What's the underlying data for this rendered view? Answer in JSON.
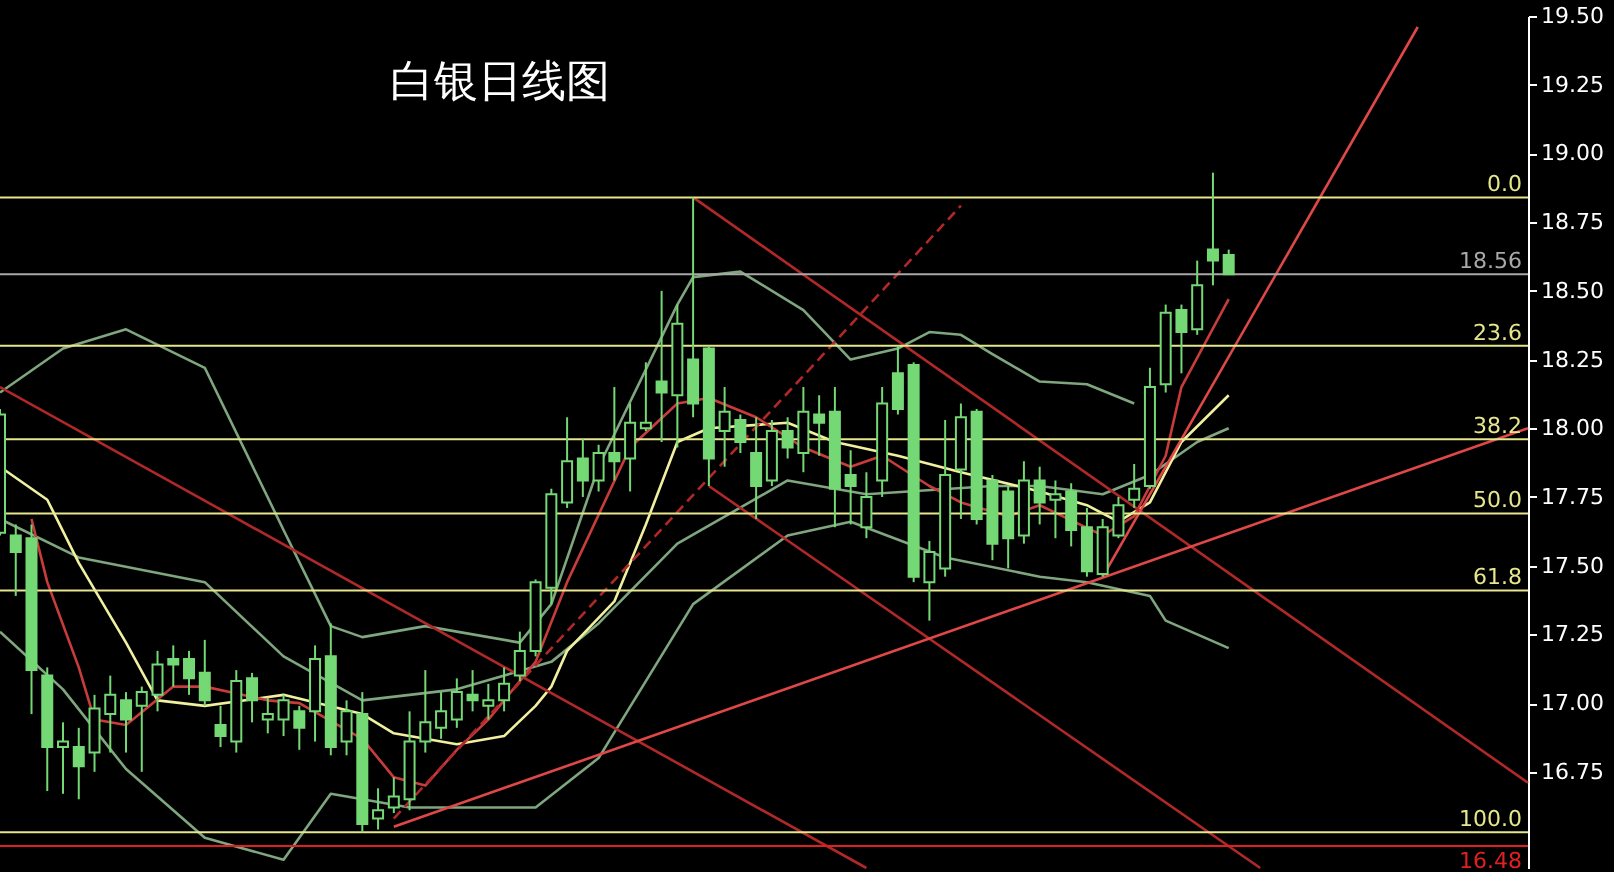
{
  "chart_data": {
    "type": "candlestick",
    "title": "白银日线图",
    "categories": [
      null,
      null,
      null,
      null,
      null,
      null,
      null,
      null,
      null,
      null,
      null,
      null,
      null,
      null,
      null,
      null,
      null,
      null,
      null,
      null,
      null,
      null,
      null,
      null,
      null,
      null,
      null,
      null,
      null,
      null,
      null,
      null,
      null,
      null,
      null,
      null,
      null,
      null,
      null,
      null,
      null,
      null,
      null,
      null,
      null,
      null,
      null,
      null,
      null,
      null,
      null,
      null,
      null,
      null,
      null,
      null,
      null,
      null,
      null,
      null,
      null,
      null,
      null,
      null,
      null,
      null,
      null,
      null,
      null,
      null,
      null,
      null,
      null,
      null,
      null,
      null,
      null,
      null,
      null,
      null,
      null,
      null,
      null,
      null,
      null,
      null,
      null,
      null,
      null,
      null,
      null,
      null,
      null,
      null,
      null,
      null,
      null,
      null
    ],
    "tick_labels": "y",
    "color": "#74d874",
    "ohlc": [
      [
        17.62,
        18.07,
        17.61,
        18.05
      ],
      [
        17.61,
        17.65,
        17.39,
        17.55
      ],
      [
        17.6,
        17.65,
        16.96,
        17.12
      ],
      [
        17.1,
        17.13,
        16.68,
        16.84
      ],
      [
        16.84,
        16.93,
        16.67,
        16.86
      ],
      [
        16.84,
        16.91,
        16.65,
        16.77
      ],
      [
        16.82,
        17.03,
        16.75,
        16.98
      ],
      [
        16.96,
        17.1,
        16.82,
        17.03
      ],
      [
        17.01,
        17.04,
        16.82,
        16.94
      ],
      [
        16.99,
        17.06,
        16.75,
        17.04
      ],
      [
        17.03,
        17.19,
        16.97,
        17.14
      ],
      [
        17.16,
        17.21,
        17.06,
        17.14
      ],
      [
        17.16,
        17.19,
        17.03,
        17.09
      ],
      [
        17.11,
        17.23,
        16.99,
        17.01
      ],
      [
        16.92,
        16.99,
        16.84,
        16.88
      ],
      [
        16.86,
        17.12,
        16.82,
        17.08
      ],
      [
        17.09,
        17.11,
        16.93,
        17.01
      ],
      [
        16.94,
        17.02,
        16.89,
        16.96
      ],
      [
        16.94,
        17.03,
        16.88,
        17.01
      ],
      [
        16.97,
        16.99,
        16.83,
        16.91
      ],
      [
        16.97,
        17.21,
        16.86,
        17.16
      ],
      [
        17.17,
        17.29,
        16.81,
        16.84
      ],
      [
        16.86,
        17.01,
        16.81,
        16.97
      ],
      [
        16.96,
        17.04,
        16.53,
        16.56
      ],
      [
        16.58,
        16.69,
        16.54,
        16.61
      ],
      [
        16.62,
        16.73,
        16.6,
        16.66
      ],
      [
        16.65,
        16.97,
        16.61,
        16.86
      ],
      [
        16.86,
        17.12,
        16.82,
        16.93
      ],
      [
        16.91,
        17.04,
        16.87,
        16.97
      ],
      [
        16.94,
        17.09,
        16.91,
        17.04
      ],
      [
        17.03,
        17.12,
        16.97,
        17.01
      ],
      [
        16.99,
        17.07,
        16.94,
        17.01
      ],
      [
        17.01,
        17.13,
        16.97,
        17.07
      ],
      [
        17.1,
        17.26,
        17.08,
        17.19
      ],
      [
        17.19,
        17.45,
        17.17,
        17.44
      ],
      [
        17.42,
        17.78,
        17.36,
        17.76
      ],
      [
        17.73,
        18.04,
        17.71,
        17.88
      ],
      [
        17.89,
        17.96,
        17.75,
        17.81
      ],
      [
        17.81,
        17.94,
        17.77,
        17.91
      ],
      [
        17.91,
        18.15,
        17.81,
        17.88
      ],
      [
        17.89,
        18.09,
        17.77,
        18.02
      ],
      [
        18.0,
        18.24,
        17.99,
        18.02
      ],
      [
        18.17,
        18.5,
        17.95,
        18.13
      ],
      [
        18.12,
        18.45,
        17.93,
        18.38
      ],
      [
        18.25,
        18.84,
        18.04,
        18.09
      ],
      [
        18.29,
        18.3,
        17.79,
        17.89
      ],
      [
        17.99,
        18.15,
        17.86,
        18.06
      ],
      [
        18.03,
        18.05,
        17.91,
        17.95
      ],
      [
        17.91,
        18.04,
        17.67,
        17.79
      ],
      [
        17.81,
        18.03,
        17.79,
        17.99
      ],
      [
        17.99,
        18.04,
        17.89,
        17.93
      ],
      [
        17.91,
        18.15,
        17.84,
        18.06
      ],
      [
        18.05,
        18.12,
        17.9,
        18.02
      ],
      [
        18.06,
        18.15,
        17.64,
        17.78
      ],
      [
        17.83,
        17.92,
        17.65,
        17.79
      ],
      [
        17.64,
        17.84,
        17.6,
        17.75
      ],
      [
        17.81,
        18.15,
        17.75,
        18.09
      ],
      [
        18.2,
        18.3,
        18.05,
        18.07
      ],
      [
        18.23,
        18.24,
        17.44,
        17.46
      ],
      [
        17.44,
        17.59,
        17.3,
        17.55
      ],
      [
        17.49,
        18.03,
        17.46,
        17.83
      ],
      [
        17.85,
        18.09,
        17.67,
        18.04
      ],
      [
        18.06,
        18.07,
        17.65,
        17.67
      ],
      [
        17.81,
        17.83,
        17.52,
        17.58
      ],
      [
        17.77,
        17.79,
        17.49,
        17.6
      ],
      [
        17.61,
        17.88,
        17.58,
        17.81
      ],
      [
        17.81,
        17.86,
        17.65,
        17.73
      ],
      [
        17.74,
        17.81,
        17.6,
        17.76
      ],
      [
        17.77,
        17.8,
        17.57,
        17.63
      ],
      [
        17.64,
        17.71,
        17.46,
        17.48
      ],
      [
        17.47,
        17.67,
        17.46,
        17.64
      ],
      [
        17.61,
        17.75,
        17.6,
        17.72
      ],
      [
        17.74,
        17.87,
        17.71,
        17.78
      ],
      [
        17.79,
        18.22,
        17.78,
        18.15
      ],
      [
        18.16,
        18.45,
        18.13,
        18.42
      ],
      [
        18.43,
        18.45,
        18.2,
        18.35
      ],
      [
        18.36,
        18.61,
        18.34,
        18.52
      ],
      [
        18.65,
        18.93,
        18.52,
        18.61
      ],
      [
        18.63,
        18.65,
        18.56,
        18.56
      ],
      null,
      null,
      null,
      null,
      null,
      null,
      null,
      null,
      null,
      null,
      null,
      null,
      null,
      null,
      null,
      null,
      null,
      null,
      null
    ],
    "series": [
      {
        "type": "line",
        "color": "#7fa67f",
        "values": [
          18.13,
          null,
          null,
          null,
          18.29,
          null,
          null,
          null,
          18.36,
          null,
          null,
          null,
          null,
          18.22,
          null,
          null,
          null,
          null,
          17.63,
          null,
          null,
          17.28,
          null,
          17.24,
          null,
          null,
          null,
          17.28,
          null,
          null,
          null,
          null,
          null,
          17.22,
          null,
          17.36,
          null,
          null,
          17.86,
          null,
          null,
          null,
          null,
          18.45,
          18.55,
          null,
          null,
          18.57,
          null,
          null,
          null,
          18.43,
          null,
          null,
          18.25,
          null,
          null,
          18.29,
          null,
          18.35,
          null,
          18.34,
          null,
          18.27,
          null,
          null,
          18.17,
          null,
          null,
          18.16,
          null,
          null,
          18.09,
          null,
          null,
          null,
          null,
          null,
          null,
          null,
          null,
          null,
          null,
          null,
          null,
          null,
          null,
          null,
          null,
          null,
          null,
          null,
          null,
          null,
          null,
          null,
          null,
          null
        ]
      },
      {
        "type": "line",
        "color": "#7fa67f",
        "values": [
          17.67,
          null,
          null,
          null,
          null,
          17.53,
          null,
          null,
          null,
          null,
          null,
          null,
          null,
          17.44,
          null,
          null,
          null,
          null,
          17.17,
          null,
          null,
          null,
          null,
          17.01,
          null,
          null,
          null,
          null,
          null,
          17.05,
          null,
          null,
          null,
          null,
          null,
          17.15,
          null,
          null,
          17.29,
          null,
          null,
          null,
          null,
          17.58,
          null,
          null,
          null,
          null,
          null,
          null,
          17.81,
          null,
          null,
          null,
          null,
          17.76,
          null,
          null,
          null,
          null,
          null,
          null,
          null,
          17.79,
          null,
          null,
          17.79,
          null,
          null,
          null,
          17.76,
          null,
          null,
          17.83,
          null,
          null,
          17.95,
          null,
          18.0,
          null,
          null,
          null,
          null,
          null,
          null,
          null,
          null,
          null,
          null,
          null,
          null,
          null,
          null,
          null,
          null,
          null,
          null,
          null
        ]
      },
      {
        "type": "line",
        "color": "#7fa67f",
        "values": [
          17.26,
          null,
          null,
          null,
          17.05,
          null,
          null,
          null,
          16.76,
          null,
          null,
          null,
          null,
          16.51,
          null,
          null,
          null,
          null,
          16.43,
          null,
          null,
          16.67,
          null,
          null,
          null,
          null,
          16.62,
          null,
          null,
          null,
          null,
          null,
          null,
          null,
          16.62,
          null,
          null,
          null,
          16.8,
          null,
          null,
          null,
          null,
          null,
          17.36,
          null,
          null,
          null,
          null,
          null,
          17.61,
          null,
          null,
          null,
          17.66,
          null,
          null,
          null,
          null,
          null,
          17.53,
          null,
          null,
          null,
          null,
          null,
          17.46,
          null,
          null,
          17.44,
          null,
          null,
          null,
          17.39,
          17.3,
          null,
          null,
          null,
          17.2,
          null,
          null,
          null,
          null,
          null,
          null,
          null,
          null,
          null,
          null,
          null,
          null,
          null,
          null,
          null,
          null,
          null,
          null,
          null
        ]
      },
      {
        "type": "line",
        "color": "#f0f0a0",
        "values": [
          17.86,
          null,
          null,
          17.74,
          null,
          17.51,
          null,
          null,
          17.22,
          null,
          17.01,
          null,
          null,
          16.99,
          null,
          null,
          null,
          null,
          17.03,
          null,
          null,
          null,
          null,
          16.96,
          null,
          16.89,
          null,
          null,
          null,
          16.85,
          null,
          null,
          16.88,
          null,
          16.99,
          17.06,
          17.19,
          null,
          null,
          17.37,
          null,
          17.65,
          null,
          17.95,
          null,
          18.0,
          null,
          null,
          null,
          null,
          18.02,
          null,
          null,
          17.95,
          null,
          null,
          null,
          17.9,
          null,
          null,
          null,
          17.84,
          null,
          null,
          null,
          null,
          17.77,
          null,
          null,
          17.72,
          null,
          17.66,
          null,
          17.73,
          null,
          17.95,
          null,
          null,
          18.12,
          null,
          null,
          null,
          null,
          null,
          null,
          null,
          null,
          null,
          null,
          null,
          null,
          null,
          null,
          null,
          null,
          null,
          null,
          null
        ]
      },
      {
        "type": "line",
        "color": "#c83c3c",
        "values": [
          null,
          null,
          17.67,
          17.44,
          null,
          17.13,
          16.94,
          null,
          16.92,
          null,
          null,
          17.06,
          null,
          17.06,
          null,
          null,
          null,
          17.01,
          null,
          17.0,
          null,
          null,
          null,
          16.87,
          null,
          16.73,
          null,
          16.7,
          null,
          16.83,
          null,
          16.94,
          null,
          null,
          17.15,
          null,
          17.44,
          null,
          null,
          null,
          17.93,
          null,
          null,
          18.09,
          null,
          18.11,
          null,
          null,
          18.04,
          null,
          null,
          17.93,
          null,
          null,
          17.86,
          null,
          17.9,
          null,
          null,
          17.79,
          null,
          17.73,
          null,
          null,
          17.68,
          null,
          17.72,
          null,
          null,
          null,
          17.61,
          null,
          17.68,
          null,
          17.9,
          18.15,
          null,
          null,
          18.47,
          null,
          null,
          null,
          null,
          null,
          null,
          null,
          null,
          null,
          null,
          null,
          null,
          null,
          null,
          null,
          null,
          null,
          null,
          null
        ]
      },
      {
        "type": "line",
        "color": "#b02828",
        "values": [
          18.15,
          null,
          null,
          null,
          null,
          null,
          null,
          null,
          null,
          null,
          null,
          null,
          null,
          null,
          null,
          null,
          null,
          null,
          null,
          null,
          null,
          null,
          null,
          null,
          null,
          null,
          null,
          null,
          null,
          null,
          null,
          null,
          null,
          null,
          null,
          null,
          null,
          null,
          null,
          null,
          null,
          null,
          null,
          null,
          null,
          null,
          null,
          null,
          null,
          null,
          null,
          null,
          null,
          null,
          null,
          16.4,
          null,
          null,
          null,
          null,
          null,
          null,
          null,
          null,
          null,
          null,
          null,
          null,
          null,
          null,
          null,
          null,
          null,
          null,
          null,
          null,
          null,
          null,
          null,
          null,
          null,
          null,
          null,
          null,
          null,
          null,
          null,
          null,
          null,
          null,
          null,
          null,
          null,
          null,
          null,
          null,
          null,
          null
        ]
      },
      {
        "type": "line",
        "color": "#b02828",
        "values": [
          null,
          null,
          null,
          null,
          null,
          null,
          null,
          null,
          null,
          null,
          null,
          null,
          null,
          null,
          null,
          null,
          null,
          null,
          null,
          null,
          null,
          null,
          null,
          null,
          null,
          null,
          null,
          null,
          null,
          null,
          null,
          null,
          null,
          null,
          null,
          null,
          null,
          null,
          null,
          null,
          null,
          null,
          null,
          null,
          18.84,
          null,
          null,
          null,
          null,
          null,
          null,
          null,
          null,
          null,
          null,
          null,
          null,
          null,
          null,
          null,
          null,
          null,
          null,
          null,
          null,
          null,
          null,
          null,
          null,
          null,
          null,
          null,
          null,
          null,
          null,
          null,
          null,
          null,
          null,
          null,
          null,
          null,
          null,
          null,
          null,
          null,
          null,
          null,
          null,
          null,
          null,
          null,
          null,
          null,
          null,
          null,
          null,
          16.71
        ]
      },
      {
        "type": "line",
        "color": "#b02828",
        "values": [
          null,
          null,
          null,
          null,
          null,
          null,
          null,
          null,
          null,
          null,
          null,
          null,
          null,
          null,
          null,
          null,
          null,
          null,
          null,
          null,
          null,
          null,
          null,
          null,
          null,
          null,
          null,
          null,
          null,
          null,
          null,
          null,
          null,
          null,
          null,
          null,
          null,
          null,
          null,
          null,
          null,
          null,
          null,
          null,
          null,
          17.79,
          null,
          null,
          null,
          null,
          null,
          null,
          null,
          null,
          null,
          null,
          null,
          null,
          null,
          null,
          null,
          null,
          null,
          null,
          null,
          null,
          null,
          null,
          null,
          null,
          null,
          null,
          null,
          null,
          null,
          null,
          null,
          null,
          null,
          null,
          16.4,
          null,
          null,
          null,
          null,
          null,
          null,
          null,
          null,
          null,
          null,
          null,
          null,
          null,
          null,
          null,
          null,
          null
        ]
      },
      {
        "type": "line",
        "color": "#b02828",
        "line_style": "dashed",
        "values": [
          null,
          null,
          null,
          null,
          null,
          null,
          null,
          null,
          null,
          null,
          null,
          null,
          null,
          null,
          null,
          null,
          null,
          null,
          null,
          null,
          null,
          null,
          null,
          null,
          null,
          16.58,
          null,
          null,
          null,
          null,
          null,
          null,
          null,
          null,
          null,
          null,
          null,
          null,
          null,
          null,
          null,
          null,
          null,
          null,
          null,
          null,
          null,
          null,
          null,
          null,
          null,
          null,
          null,
          null,
          null,
          null,
          null,
          null,
          null,
          null,
          null,
          18.81,
          null,
          null,
          null,
          null,
          null,
          null,
          null,
          null,
          null,
          null,
          null,
          null,
          null,
          null,
          null,
          null,
          null,
          null,
          null,
          null,
          null,
          null,
          null,
          null,
          null,
          null,
          null,
          null,
          null,
          null,
          null,
          null,
          null,
          null,
          null,
          null
        ]
      },
      {
        "type": "line",
        "color": "#e04848",
        "values": [
          null,
          null,
          null,
          null,
          null,
          null,
          null,
          null,
          null,
          null,
          null,
          null,
          null,
          null,
          null,
          null,
          null,
          null,
          null,
          null,
          null,
          null,
          null,
          null,
          null,
          16.55,
          null,
          null,
          null,
          null,
          null,
          null,
          null,
          null,
          null,
          null,
          null,
          null,
          null,
          null,
          null,
          null,
          null,
          null,
          null,
          null,
          null,
          null,
          null,
          null,
          null,
          null,
          null,
          null,
          null,
          null,
          null,
          null,
          null,
          null,
          null,
          null,
          null,
          null,
          null,
          null,
          null,
          null,
          null,
          null,
          null,
          null,
          null,
          null,
          null,
          null,
          null,
          null,
          null,
          null,
          null,
          null,
          null,
          null,
          null,
          null,
          null,
          null,
          null,
          null,
          null,
          null,
          null,
          null,
          null,
          null,
          null,
          18.0
        ]
      },
      {
        "type": "line",
        "color": "#e04848",
        "values": [
          null,
          null,
          null,
          null,
          null,
          null,
          null,
          null,
          null,
          null,
          null,
          null,
          null,
          null,
          null,
          null,
          null,
          null,
          null,
          null,
          null,
          null,
          null,
          null,
          null,
          null,
          null,
          null,
          null,
          null,
          null,
          null,
          null,
          null,
          null,
          null,
          null,
          null,
          null,
          null,
          null,
          null,
          null,
          null,
          null,
          null,
          null,
          null,
          null,
          null,
          null,
          null,
          null,
          null,
          null,
          null,
          null,
          null,
          null,
          null,
          null,
          null,
          null,
          null,
          null,
          null,
          null,
          null,
          null,
          null,
          17.46,
          null,
          null,
          null,
          null,
          null,
          null,
          null,
          null,
          null,
          null,
          null,
          null,
          null,
          null,
          null,
          null,
          null,
          null,
          null,
          19.46,
          null,
          null,
          null,
          null,
          null,
          null,
          null
        ]
      }
    ],
    "ref_lines": [
      {
        "axis": "y",
        "value": 18.84,
        "color": "#e6e68c"
      },
      {
        "axis": "y",
        "value": 18.3,
        "color": "#e6e68c"
      },
      {
        "axis": "y",
        "value": 17.96,
        "color": "#e6e68c"
      },
      {
        "axis": "y",
        "value": 17.69,
        "color": "#e6e68c"
      },
      {
        "axis": "y",
        "value": 17.41,
        "color": "#e6e68c"
      },
      {
        "axis": "y",
        "value": 16.53,
        "color": "#e6e68c"
      },
      {
        "axis": "y",
        "value": 18.56,
        "label": "18.56",
        "color": "#a8a8a8"
      },
      {
        "axis": "y",
        "value": 16.48,
        "label": "16.48",
        "color": "#e02020"
      }
    ],
    "annotations": [
      {
        "text": "0.0",
        "y": 18.84
      },
      {
        "text": "23.6",
        "y": 18.3
      },
      {
        "text": "38.2",
        "y": 17.96
      },
      {
        "text": "50.0",
        "y": 17.69
      },
      {
        "text": "61.8",
        "y": 17.41
      },
      {
        "text": "100.0",
        "y": 16.53
      }
    ],
    "ylim": [
      16.4,
      19.5
    ],
    "yticks": [
      16.75,
      {
        "value": 17,
        "label": "17.00"
      },
      17.25,
      {
        "value": 17.5,
        "label": "17.50"
      },
      17.75,
      {
        "value": 18,
        "label": "18.00"
      },
      18.25,
      {
        "value": 18.5,
        "label": "18.50"
      },
      18.75,
      {
        "value": 19,
        "label": "19.00"
      },
      19.25,
      {
        "value": 19.5,
        "label": "19.50"
      }
    ]
  }
}
